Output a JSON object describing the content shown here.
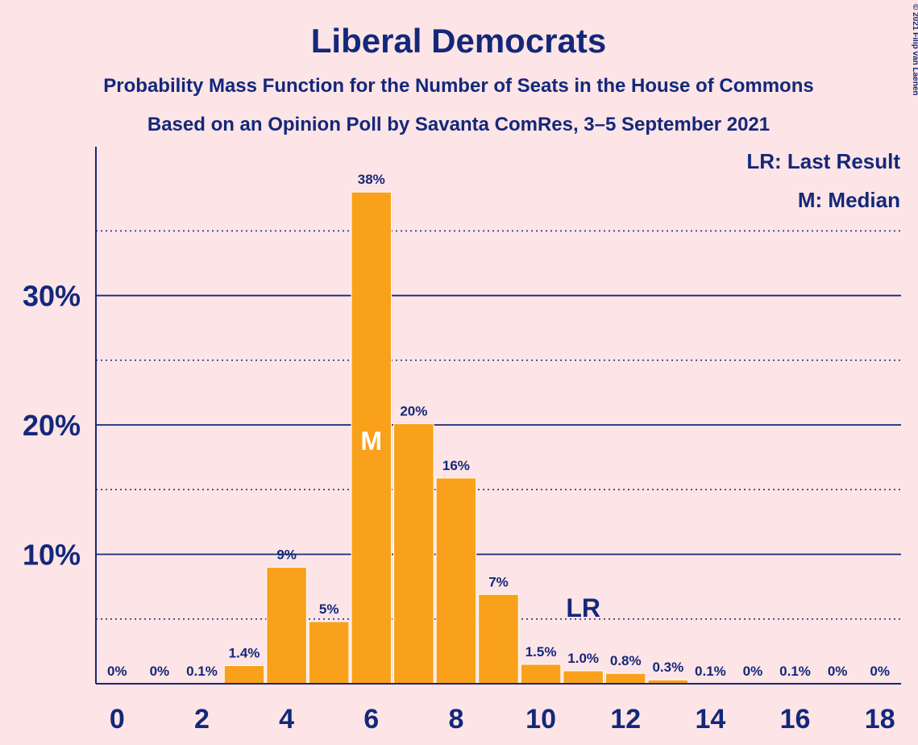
{
  "copyright": "© 2021 Filip van Laenen",
  "chart_data": {
    "type": "bar",
    "title": "Liberal Democrats",
    "subtitle": "Probability Mass Function for the Number of Seats in the House of Commons",
    "subtitle2": "Based on an Opinion Poll by Savanta ComRes, 3–5 September 2021",
    "legend": [
      "LR: Last Result",
      "M: Median"
    ],
    "legend_position": "top-right",
    "categories": [
      0,
      1,
      2,
      3,
      4,
      5,
      6,
      7,
      8,
      9,
      10,
      11,
      12,
      13,
      14,
      15,
      16,
      17,
      18
    ],
    "values": [
      0,
      0,
      0.1,
      1.4,
      9,
      4.8,
      38,
      20.1,
      15.9,
      6.9,
      1.5,
      1.0,
      0.8,
      0.3,
      0.1,
      0,
      0.1,
      0,
      0
    ],
    "value_labels": [
      "0%",
      "0%",
      "0.1%",
      "1.4%",
      "9%",
      "5%",
      "38%",
      "20%",
      "16%",
      "7%",
      "1.5%",
      "1.0%",
      "0.8%",
      "0.3%",
      "0.1%",
      "0%",
      "0.1%",
      "0%",
      "0%"
    ],
    "x_tick_labels": [
      "0",
      "2",
      "4",
      "6",
      "8",
      "10",
      "12",
      "14",
      "16",
      "18"
    ],
    "x_ticks": [
      0,
      2,
      4,
      6,
      8,
      10,
      12,
      14,
      16,
      18
    ],
    "y_tick_labels": [
      "10%",
      "20%",
      "30%"
    ],
    "y_ticks": [
      10,
      20,
      30
    ],
    "y_minor_ticks": [
      5,
      15,
      25,
      35
    ],
    "ylim": [
      0,
      41.5
    ],
    "median_seats": 6,
    "median_label": "M",
    "last_result_seats": 11,
    "last_result_label": "LR",
    "bar_color": "#f9a11b",
    "axis_color": "#13287a",
    "background": "#fde4e6"
  }
}
